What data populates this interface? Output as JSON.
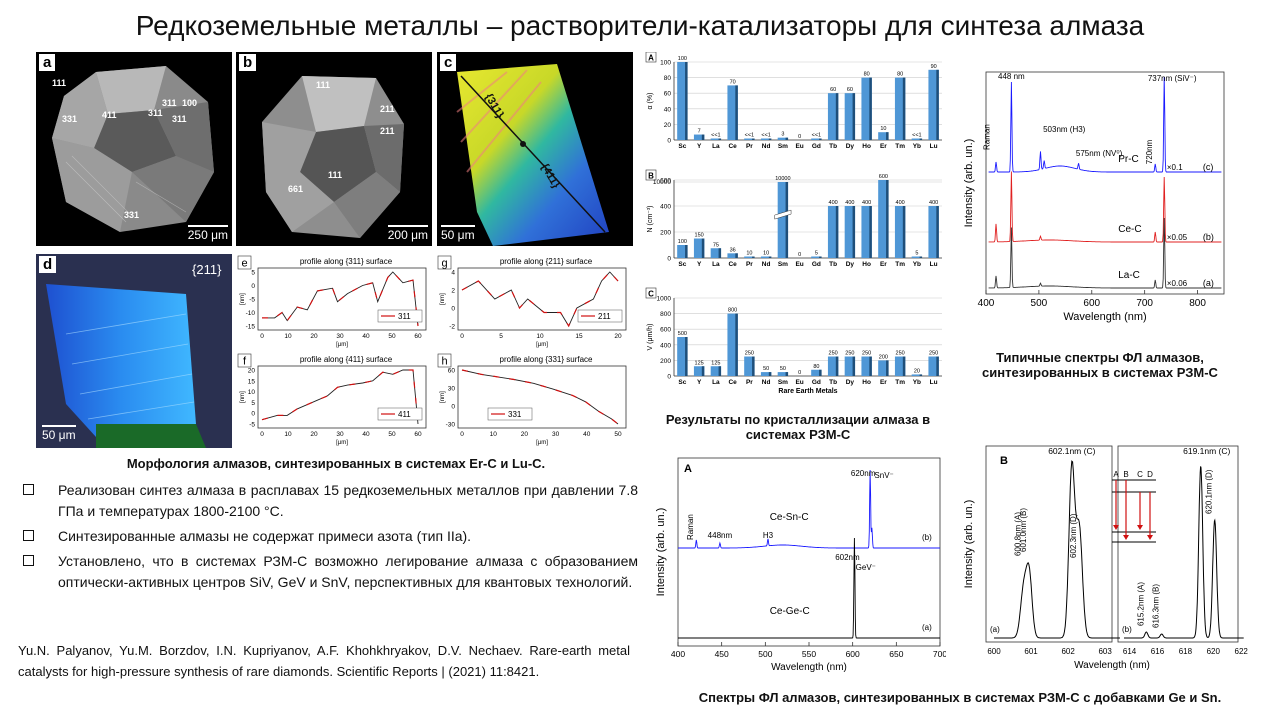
{
  "title": "Редкоземельные металлы – растворители-катализаторы для синтеза алмаза",
  "morphology": {
    "a": {
      "label": "a",
      "scale": "250 μm",
      "faces": [
        "111",
        "331",
        "411",
        "311",
        "100",
        "311",
        "311",
        "331"
      ]
    },
    "b": {
      "label": "b",
      "scale": "200 μm",
      "faces": [
        "111",
        "211",
        "211",
        "111",
        "661"
      ]
    },
    "c": {
      "label": "c",
      "scale": "50 μm",
      "faces": [
        "{311}",
        "{411}"
      ]
    },
    "d": {
      "label": "d",
      "scale": "50 μm",
      "face": "{211}"
    },
    "caption": "Морфология алмазов, синтезированных в системах Er-C и Lu-C."
  },
  "profiles": [
    {
      "label": "e",
      "title": "profile along {311} surface",
      "legend": "311",
      "ylabel": "[nm]",
      "xlabel": "[μm]",
      "yticks": [
        "5",
        "0",
        "-5",
        "-10",
        "-15"
      ],
      "xticks": [
        "0",
        "10",
        "20",
        "30",
        "40",
        "50",
        "60"
      ]
    },
    {
      "label": "g",
      "title": "profile along {211} surface",
      "legend": "211",
      "ylabel": "[nm]",
      "xlabel": "[μm]",
      "yticks": [
        "4",
        "2",
        "0",
        "-2"
      ],
      "xticks": [
        "0",
        "5",
        "10",
        "15",
        "20"
      ]
    },
    {
      "label": "f",
      "title": "profile along {411} surface",
      "legend": "411",
      "ylabel": "[nm]",
      "xlabel": "[μm]",
      "yticks": [
        "20",
        "15",
        "10",
        "5",
        "0",
        "-5"
      ],
      "xticks": [
        "0",
        "10",
        "20",
        "30",
        "40",
        "50",
        "60"
      ]
    },
    {
      "label": "h",
      "title": "profile along {331} surface",
      "legend": "331",
      "ylabel": "[nm]",
      "xlabel": "[μm]",
      "yticks": [
        "60",
        "30",
        "0",
        "-30"
      ],
      "xticks": [
        "0",
        "10",
        "20",
        "30",
        "40",
        "50"
      ]
    }
  ],
  "bullets": [
    "Реализован синтез алмаза в расплавах 15 редкоземельных металлов при давлении 7.8 ГПа и температурах 1800-2100 °С.",
    "Синтезированные алмазы не содержат примеси азота (тип IIa).",
    "Установлено, что в системах РЗМ-С возможно легирование алмаза  с образованием оптически-активных центров SiV, GeV и SnV, перспективных для квантовых технологий."
  ],
  "reference": "Yu.N. Palyanov, Yu.M. Borzdov, I.N. Kupriyanov, A.F. Khohkhryakov, D.V. Nechaev. Rare-earth metal catalysts for high-pressure synthesis of rare diamonds. Scientific Reports | (2021) 11:8421.",
  "bar_caption": "Результаты по кристаллизации алмаза в системах РЗМ-С",
  "pl_caption": "Типичные спектры ФЛ алмазов, синтезированных в системах РЗМ-С",
  "gesn_caption": "Спектры ФЛ алмазов, синтезированных в системах РЗМ-С с добавками Ge и Sn.",
  "colors": {
    "bar": "#4f97d6",
    "bar_dark": "#1f4f7a",
    "blue": "#1a1aff",
    "red": "#e02020"
  },
  "chart_data": [
    {
      "id": "A",
      "type": "bar",
      "ylabel": "α (%)",
      "ylim": [
        0,
        100
      ],
      "yticks": [
        "0",
        "20",
        "40",
        "60",
        "80",
        "100"
      ],
      "categories": [
        "Sc",
        "Y",
        "La",
        "Ce",
        "Pr",
        "Nd",
        "Sm",
        "Eu",
        "Gd",
        "Tb",
        "Dy",
        "Ho",
        "Er",
        "Tm",
        "Yb",
        "Lu"
      ],
      "values": [
        100,
        7,
        0.5,
        70,
        0.5,
        0.5,
        3,
        0,
        0.5,
        60,
        60,
        80,
        10,
        80,
        0.5,
        90
      ],
      "value_labels": [
        "100",
        "7",
        "<<1",
        "70",
        "<<1",
        "<<1",
        "3",
        "0",
        "<<1",
        "60",
        "60",
        "80",
        "10",
        "80",
        "<<1",
        "90"
      ]
    },
    {
      "id": "B",
      "type": "bar",
      "ylabel": "N (cm⁻³)",
      "ylim": [
        0,
        600
      ],
      "axis_break": true,
      "yticks": [
        "0",
        "200",
        "400",
        "600"
      ],
      "ytop_label": "10000",
      "categories": [
        "Sc",
        "Y",
        "La",
        "Ce",
        "Pr",
        "Nd",
        "Sm",
        "Eu",
        "Gd",
        "Tb",
        "Dy",
        "Ho",
        "Er",
        "Tm",
        "Yb",
        "Lu"
      ],
      "values": [
        100,
        150,
        75,
        36,
        10,
        10,
        10000,
        0,
        5,
        400,
        400,
        400,
        600,
        400,
        5,
        400
      ],
      "value_labels": [
        "100",
        "150",
        "75",
        "36",
        "10",
        "10",
        "10000",
        "0",
        "5",
        "400",
        "400",
        "400",
        "600",
        "400",
        "5",
        "400"
      ]
    },
    {
      "id": "C",
      "type": "bar",
      "ylabel": "V (μm/h)",
      "xlabel": "Rare Earth Metals",
      "ylim": [
        0,
        1000
      ],
      "yticks": [
        "0",
        "200",
        "400",
        "600",
        "800",
        "1000"
      ],
      "categories": [
        "Sc",
        "Y",
        "La",
        "Ce",
        "Pr",
        "Nd",
        "Sm",
        "Eu",
        "Gd",
        "Tb",
        "Dy",
        "Ho",
        "Er",
        "Tm",
        "Yb",
        "Lu"
      ],
      "values": [
        500,
        125,
        125,
        800,
        250,
        50,
        50,
        0,
        80,
        250,
        250,
        250,
        200,
        250,
        20,
        250
      ],
      "value_labels": [
        "500",
        "125",
        "125",
        "800",
        "250",
        "50",
        "50",
        "0",
        "80",
        "250",
        "250",
        "250",
        "200",
        "250",
        "20",
        "250"
      ]
    },
    {
      "id": "pl",
      "type": "line",
      "xlabel": "Wavelength (nm)",
      "ylabel": "Intensity (arb. un.)",
      "xlim": [
        400,
        850
      ],
      "xticks": [
        "400",
        "500",
        "600",
        "700",
        "800"
      ],
      "series": [
        {
          "name": "Pr-C",
          "mult": "×0.1",
          "tag": "(c)",
          "color": "#1a1aff"
        },
        {
          "name": "Ce-C",
          "mult": "×0.05",
          "tag": "(b)",
          "color": "#e02020"
        },
        {
          "name": "La-C",
          "mult": "×0.06",
          "tag": "(a)",
          "color": "#333333"
        }
      ],
      "annotations": [
        "448 nm",
        "Raman",
        "503nm (H3)",
        "575nm (NV⁰)",
        "720nm",
        "737nm (SiV⁻)"
      ]
    },
    {
      "id": "A2",
      "type": "line",
      "label": "A",
      "xlabel": "Wavelength (nm)",
      "ylabel": "Intensity (arb. un.)",
      "xlim": [
        400,
        700
      ],
      "xticks": [
        "400",
        "450",
        "500",
        "550",
        "600",
        "650",
        "700"
      ],
      "series": [
        {
          "name": "Ce-Sn-C",
          "tag": "(b)",
          "color": "#1a1aff"
        },
        {
          "name": "Ce-Ge-C",
          "tag": "(a)",
          "color": "#000000"
        }
      ],
      "annotations": [
        "Raman",
        "448nm",
        "H3",
        "620nm",
        "SnV⁻",
        "602nm",
        "GeV⁻"
      ]
    },
    {
      "id": "B2",
      "type": "line",
      "label": "B",
      "xlabel": "Wavelength (nm)",
      "ylabel": "Intensity (arb. un.)",
      "xticks_left": [
        "600",
        "601",
        "602",
        "603"
      ],
      "xticks_right": [
        "614",
        "616",
        "618",
        "620",
        "622"
      ],
      "series": [
        {
          "name": "(a)"
        },
        {
          "name": "(b)"
        }
      ],
      "annotations": [
        "600.8nm (A)",
        "601.0nm (B)",
        "602.1nm (C)",
        "602.3nm (D)",
        "615.2nm (A)",
        "616.3nm (B)",
        "619.1nm (C)",
        "620.1nm (D)"
      ],
      "levels": [
        "A",
        "B",
        "C",
        "D"
      ]
    }
  ]
}
